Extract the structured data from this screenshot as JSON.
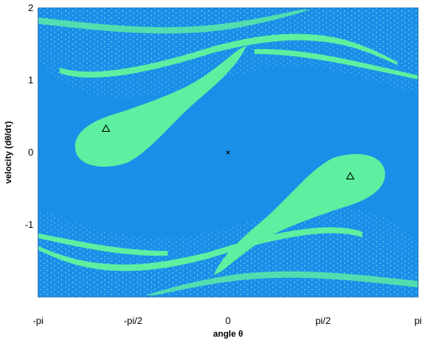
{
  "chart_data": {
    "type": "scatter",
    "title": "",
    "xlabel": "angle θ",
    "ylabel": "velocity (dθ/dτ)",
    "xlim": [
      -3.14159,
      3.14159
    ],
    "ylim": [
      -2,
      2
    ],
    "x_ticks": [
      {
        "value": -3.14159,
        "label": "-pi"
      },
      {
        "value": -1.5708,
        "label": "-pi/2"
      },
      {
        "value": 0,
        "label": "0"
      },
      {
        "value": 1.5708,
        "label": "pi/2"
      },
      {
        "value": 3.14159,
        "label": "pi"
      }
    ],
    "y_ticks": [
      {
        "value": 2,
        "label": "2"
      },
      {
        "value": 1,
        "label": "1"
      },
      {
        "value": 0,
        "label": "0"
      },
      {
        "value": -1,
        "label": "-1"
      }
    ],
    "grid": false,
    "colors": {
      "background_region": "#1a8fe8",
      "island_region": "#5ef0a0",
      "speckle": "#7fd0f0",
      "marker": "#000000"
    },
    "markers": [
      {
        "name": "",
        "shape": "triangle",
        "x": -2.02,
        "y": 0.33
      },
      {
        "name": "",
        "shape": "triangle",
        "x": 2.02,
        "y": -0.33
      },
      {
        "name": "",
        "shape": "cross",
        "x": 0,
        "y": 0
      }
    ]
  }
}
